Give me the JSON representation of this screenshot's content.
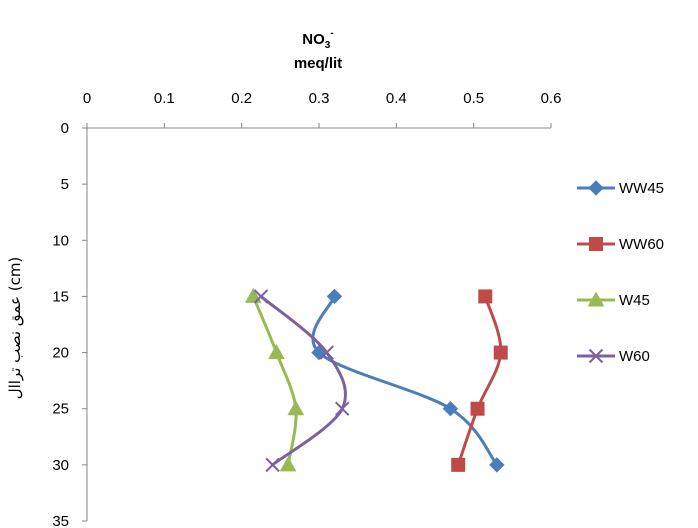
{
  "chart_data": {
    "type": "line",
    "title_main": "NO",
    "title_sub": "3",
    "title_sup": "-",
    "title_unit": "meq/lit",
    "xlabel": "",
    "ylabel": "عمق نصب تراال (cm)",
    "x_axis_position": "top",
    "y_axis_inverted": true,
    "xlim": [
      0,
      0.6
    ],
    "ylim": [
      0,
      35
    ],
    "x_ticks": [
      "0",
      "0.1",
      "0.2",
      "0.3",
      "0.4",
      "0.5",
      "0.6"
    ],
    "y_ticks": [
      "0",
      "5",
      "10",
      "15",
      "20",
      "25",
      "30",
      "35"
    ],
    "grid": false,
    "legend_position": "right",
    "series": [
      {
        "name": "WW45",
        "color": "#4a7ebb",
        "marker": "diamond",
        "points": [
          {
            "x": 0.32,
            "y": 15
          },
          {
            "x": 0.3,
            "y": 20
          },
          {
            "x": 0.47,
            "y": 25
          },
          {
            "x": 0.53,
            "y": 30
          }
        ]
      },
      {
        "name": "WW60",
        "color": "#be4b48",
        "marker": "square",
        "points": [
          {
            "x": 0.515,
            "y": 15
          },
          {
            "x": 0.535,
            "y": 20
          },
          {
            "x": 0.505,
            "y": 25
          },
          {
            "x": 0.48,
            "y": 30
          }
        ]
      },
      {
        "name": "W45",
        "color": "#98b954",
        "marker": "triangle",
        "points": [
          {
            "x": 0.215,
            "y": 15
          },
          {
            "x": 0.245,
            "y": 20
          },
          {
            "x": 0.27,
            "y": 25
          },
          {
            "x": 0.26,
            "y": 30
          }
        ]
      },
      {
        "name": "W60",
        "color": "#7d60a0",
        "marker": "x",
        "points": [
          {
            "x": 0.225,
            "y": 15
          },
          {
            "x": 0.31,
            "y": 20
          },
          {
            "x": 0.33,
            "y": 25
          },
          {
            "x": 0.24,
            "y": 30
          }
        ]
      }
    ]
  }
}
